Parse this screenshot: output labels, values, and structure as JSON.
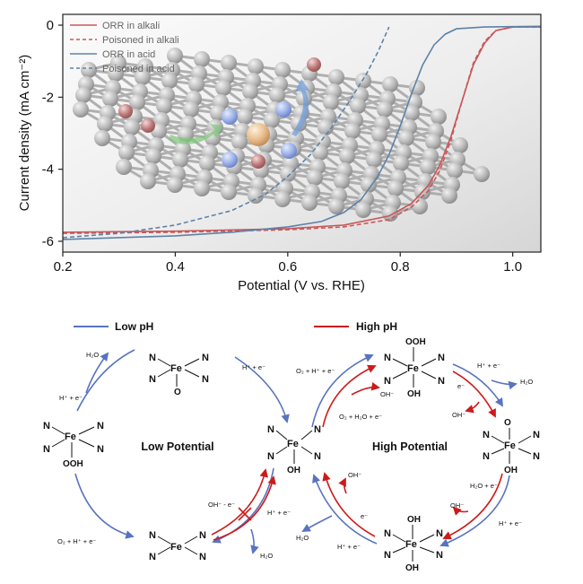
{
  "chart_data": {
    "type": "line",
    "title": "",
    "xlabel": "Potential (V vs. RHE)",
    "ylabel": "Current density (mA cm⁻²)",
    "xlim": [
      0.2,
      1.05
    ],
    "ylim": [
      -6.3,
      0.3
    ],
    "xticks": [
      "0.2",
      "0.4",
      "0.6",
      "0.8",
      "1.0"
    ],
    "yticks": [
      "0",
      "-2",
      "-4",
      "-6"
    ],
    "legend_position": "top-left",
    "series": [
      {
        "name": "ORR in alkali",
        "color": "#c9575a",
        "dash": false,
        "x": [
          0.2,
          0.4,
          0.6,
          0.7,
          0.78,
          0.82,
          0.85,
          0.87,
          0.89,
          0.91,
          0.93,
          0.95,
          0.97,
          1.0,
          1.05
        ],
        "y": [
          -5.75,
          -5.72,
          -5.65,
          -5.55,
          -5.3,
          -4.95,
          -4.45,
          -3.9,
          -3.1,
          -2.1,
          -1.1,
          -0.5,
          -0.15,
          -0.05,
          -0.05
        ]
      },
      {
        "name": "Poisoned in alkali",
        "color": "#c9575a",
        "dash": true,
        "x": [
          0.2,
          0.4,
          0.6,
          0.7,
          0.78,
          0.82,
          0.85,
          0.87,
          0.89,
          0.91,
          0.93,
          0.95,
          0.97,
          1.0,
          1.05
        ],
        "y": [
          -5.78,
          -5.75,
          -5.68,
          -5.6,
          -5.4,
          -5.05,
          -4.6,
          -4.05,
          -3.2,
          -2.1,
          -1.05,
          -0.45,
          -0.15,
          -0.05,
          -0.05
        ]
      },
      {
        "name": "ORR in acid",
        "color": "#5d82a8",
        "dash": false,
        "x": [
          0.2,
          0.4,
          0.5,
          0.6,
          0.66,
          0.7,
          0.73,
          0.76,
          0.78,
          0.8,
          0.82,
          0.84,
          0.86,
          0.88,
          0.9,
          0.95,
          1.05
        ],
        "y": [
          -5.95,
          -5.85,
          -5.75,
          -5.6,
          -5.45,
          -5.2,
          -4.85,
          -4.2,
          -3.6,
          -2.8,
          -1.9,
          -1.1,
          -0.55,
          -0.25,
          -0.1,
          -0.05,
          -0.03
        ]
      },
      {
        "name": "Poisoned in acid",
        "color": "#5d82a8",
        "dash": true,
        "x": [
          0.2,
          0.3,
          0.4,
          0.5,
          0.56,
          0.6,
          0.64,
          0.68,
          0.71,
          0.74,
          0.76,
          0.78
        ],
        "y": [
          -5.9,
          -5.78,
          -5.55,
          -5.15,
          -4.7,
          -4.2,
          -3.6,
          -2.8,
          -2.1,
          -1.35,
          -0.75,
          -0.05
        ]
      }
    ]
  },
  "diagram": {
    "low_ph_label": "Low pH",
    "high_ph_label": "High pH",
    "low_potential_label": "Low Potential",
    "high_potential_label": "High Potential",
    "atoms": {
      "n": "N",
      "fe": "Fe",
      "o": "O",
      "oh": "OH",
      "ooh": "OOH"
    },
    "steps": {
      "h2o_top_left": "H₂O",
      "hplus_e_left": "H⁺ + e⁻",
      "hplus_e_top": "H⁺ + e⁻",
      "o2_h_e_bottom_left": "O₂ + H⁺ + e⁻",
      "oh_minus_e": "OH⁻ - e⁻",
      "hplus_e_bottom_mid": "H⁺ + e⁻",
      "h2o_bottom_mid": "H₂O",
      "o2_h_e_top_right": "O₂ + H⁺ + e⁻",
      "oh_minus_a": "OH⁻",
      "o2_h2o_e": "O₂ + H₂O + e⁻",
      "hplus_e_top_right": "H⁺ + e⁻",
      "h2o_top_right": "H₂O",
      "e_minus_a": "e⁻",
      "oh_minus_b": "OH⁻",
      "h2o_e": "H₂O + e⁻",
      "oh_minus_c": "OH⁻",
      "hplus_e_right": "H⁺ + e⁻",
      "oh_minus_d": "OH⁻",
      "e_minus_b": "e⁻",
      "h2o_bottom_right": "H₂O",
      "hplus_e_bottom_right": "H⁺ + e⁻"
    }
  },
  "colors": {
    "blue": "#5873c0",
    "red": "#cc1b1b",
    "alkali": "#c9575a",
    "acid": "#5d82a8"
  }
}
